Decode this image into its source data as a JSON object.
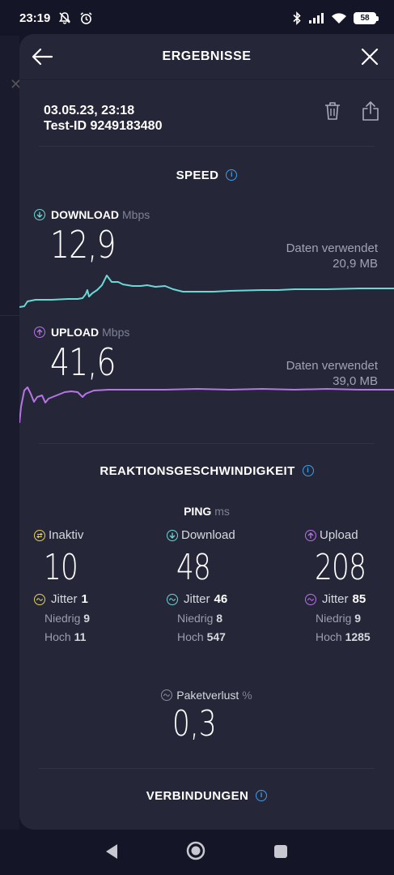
{
  "status": {
    "time": "23:19",
    "battery": "58"
  },
  "header": {
    "title": "ERGEBNISSE"
  },
  "meta": {
    "datetime": "03.05.23, 23:18",
    "test_id": "Test-ID 9249183480"
  },
  "speed": {
    "section_title": "SPEED",
    "download": {
      "label": "DOWNLOAD",
      "unit": "Mbps",
      "value": "12,9",
      "data_label": "Daten verwendet",
      "data_value": "20,9 MB"
    },
    "upload": {
      "label": "UPLOAD",
      "unit": "Mbps",
      "value": "41,6",
      "data_label": "Daten verwendet",
      "data_value": "39,0 MB"
    }
  },
  "reaction": {
    "section_title": "REAKTIONSGESCHWINDIGKEIT",
    "ping_label": "PING",
    "ping_unit": "ms",
    "idle": {
      "label": "Inaktiv",
      "value": "10",
      "jitter_label": "Jitter",
      "jitter": "1",
      "low_label": "Niedrig",
      "low": "9",
      "high_label": "Hoch",
      "high": "11"
    },
    "download": {
      "label": "Download",
      "value": "48",
      "jitter_label": "Jitter",
      "jitter": "46",
      "low_label": "Niedrig",
      "low": "8",
      "high_label": "Hoch",
      "high": "547"
    },
    "upload": {
      "label": "Upload",
      "value": "208",
      "jitter_label": "Jitter",
      "jitter": "85",
      "low_label": "Niedrig",
      "low": "9",
      "high_label": "Hoch",
      "high": "1285"
    },
    "packet_loss_label": "Paketverlust",
    "packet_loss_unit": "%",
    "packet_loss": "0,3"
  },
  "connections": {
    "section_title": "VERBINDUNGEN"
  },
  "colors": {
    "download": "#6ad8d6",
    "upload": "#b774e6",
    "idle": "#e7d35a",
    "info": "#3d9fe8"
  },
  "icons": {
    "back": "arrow-left-icon",
    "close": "close-icon",
    "trash": "trash-icon",
    "share": "share-icon",
    "info": "info-icon"
  }
}
